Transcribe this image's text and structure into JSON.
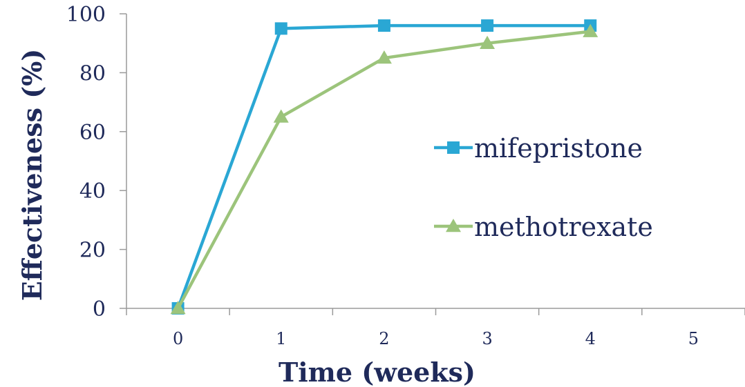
{
  "chart_data": {
    "type": "line",
    "xlabel": "Time (weeks)",
    "ylabel": "Effectiveness (%)",
    "xlim": [
      -0.5,
      5.5
    ],
    "ylim": [
      0,
      100
    ],
    "xticks": [
      0,
      1,
      2,
      3,
      4,
      5
    ],
    "yticks": [
      0,
      20,
      40,
      60,
      80,
      100
    ],
    "grid": false,
    "legend_position": "right",
    "series": [
      {
        "name": "mifepristone",
        "color": "#2aa7d4",
        "marker": "square",
        "x": [
          0,
          1,
          2,
          3,
          4
        ],
        "y": [
          0,
          95,
          96,
          96,
          96
        ]
      },
      {
        "name": "methotrexate",
        "color": "#9cc47b",
        "marker": "triangle",
        "x": [
          0,
          1,
          2,
          3,
          4
        ],
        "y": [
          0,
          65,
          85,
          90,
          94
        ]
      }
    ]
  }
}
